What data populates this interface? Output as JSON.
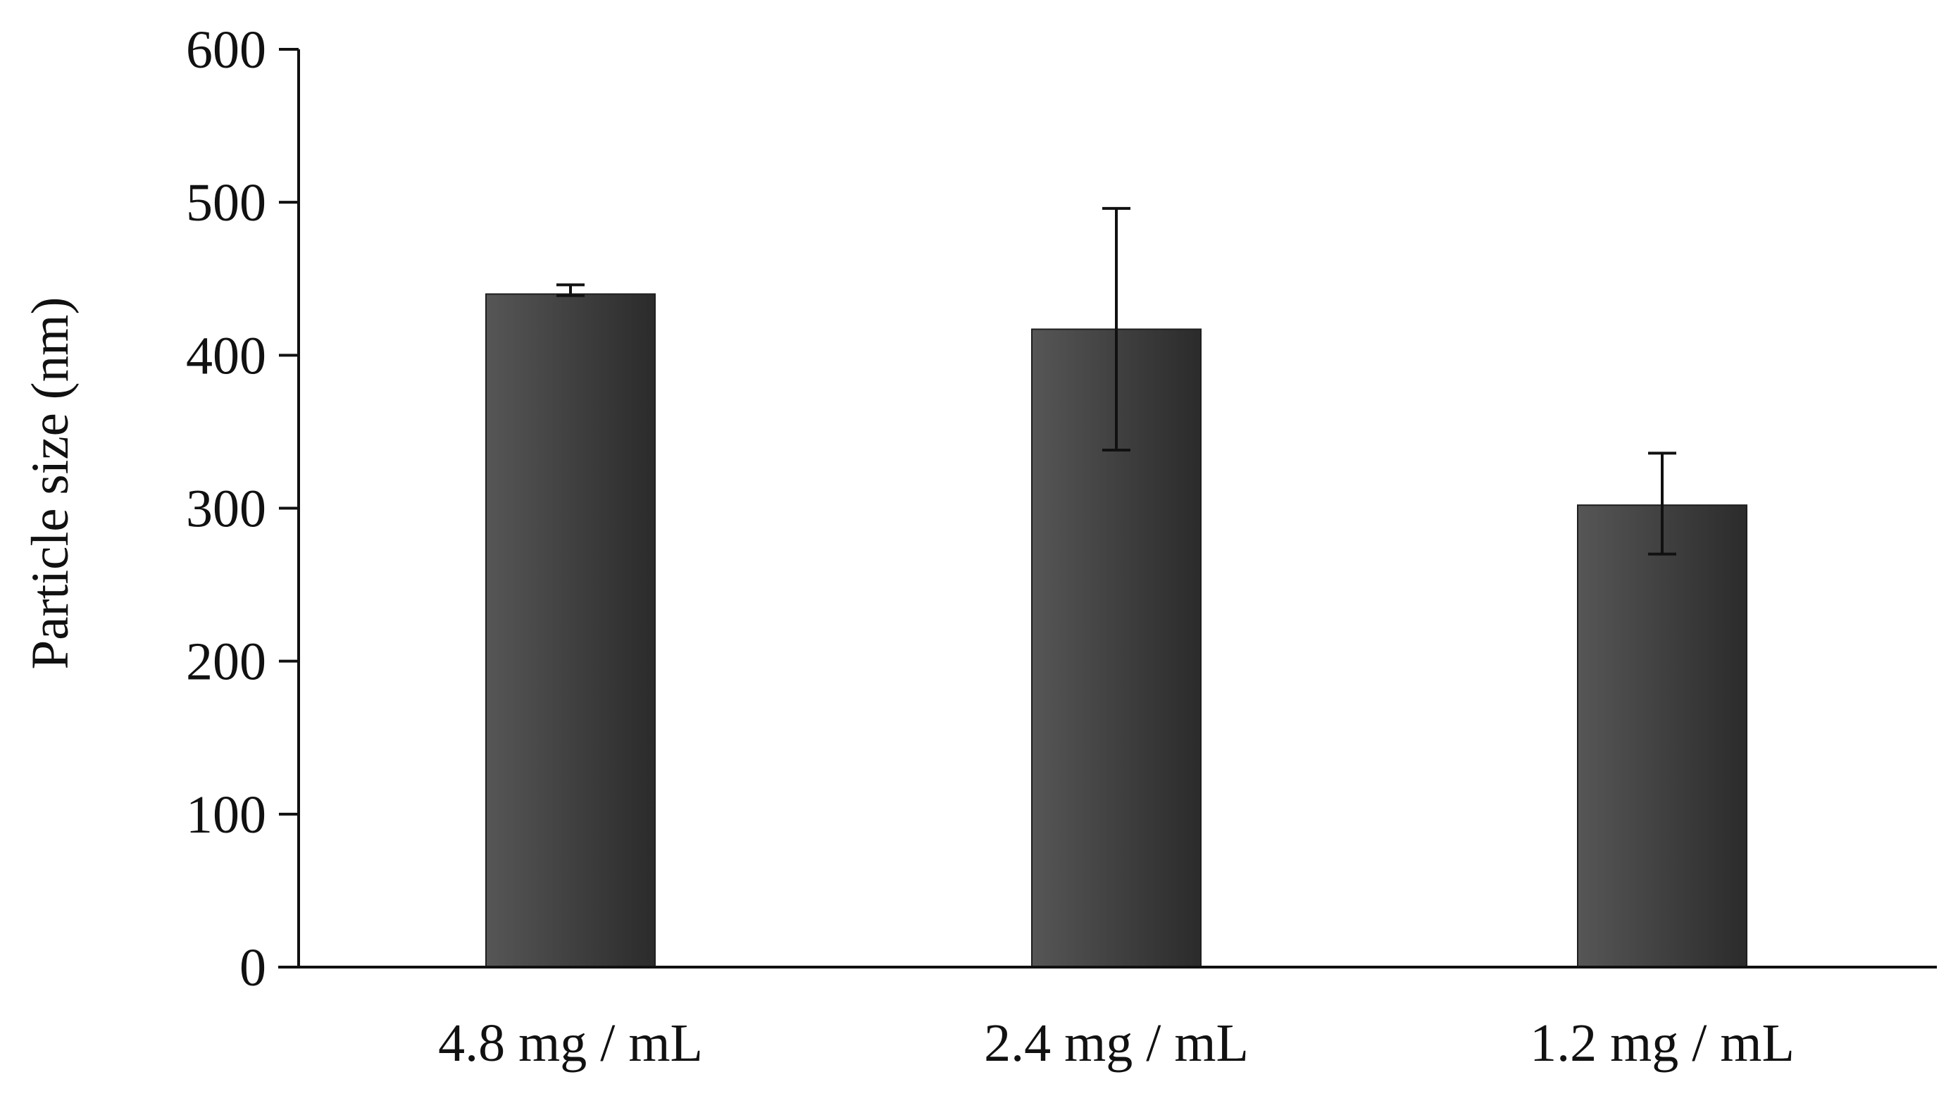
{
  "chart_data": {
    "type": "bar",
    "title": "",
    "xlabel": "",
    "ylabel": "Particle size (nm)",
    "categories": [
      "4.8 mg / mL",
      "2.4 mg / mL",
      "1.2 mg / mL"
    ],
    "values": [
      440,
      417,
      302
    ],
    "error_low": [
      439,
      338,
      270
    ],
    "error_high": [
      446,
      496,
      336
    ],
    "ylim": [
      0,
      600
    ],
    "yticks": [
      0,
      100,
      200,
      300,
      400,
      500,
      600
    ],
    "ytick_labels": [
      "0",
      "100",
      "200",
      "300",
      "400",
      "500",
      "600"
    ],
    "grid": false,
    "legend": "none",
    "colors": {
      "bar_light": "#565656",
      "bar_dark": "#2b2b2b",
      "axis": "#111111"
    }
  }
}
